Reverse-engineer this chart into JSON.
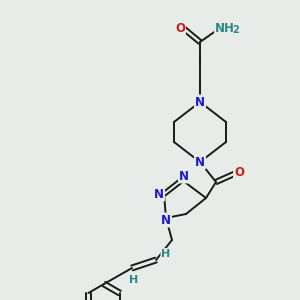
{
  "background_color": "#e8ece8",
  "atom_colors": {
    "C": "#1a1a1a",
    "N": "#1a1acc",
    "O": "#cc1a1a",
    "H": "#2a8888"
  },
  "figsize": [
    3.0,
    3.0
  ],
  "dpi": 100,
  "lw": 1.4,
  "fs": 8.5
}
